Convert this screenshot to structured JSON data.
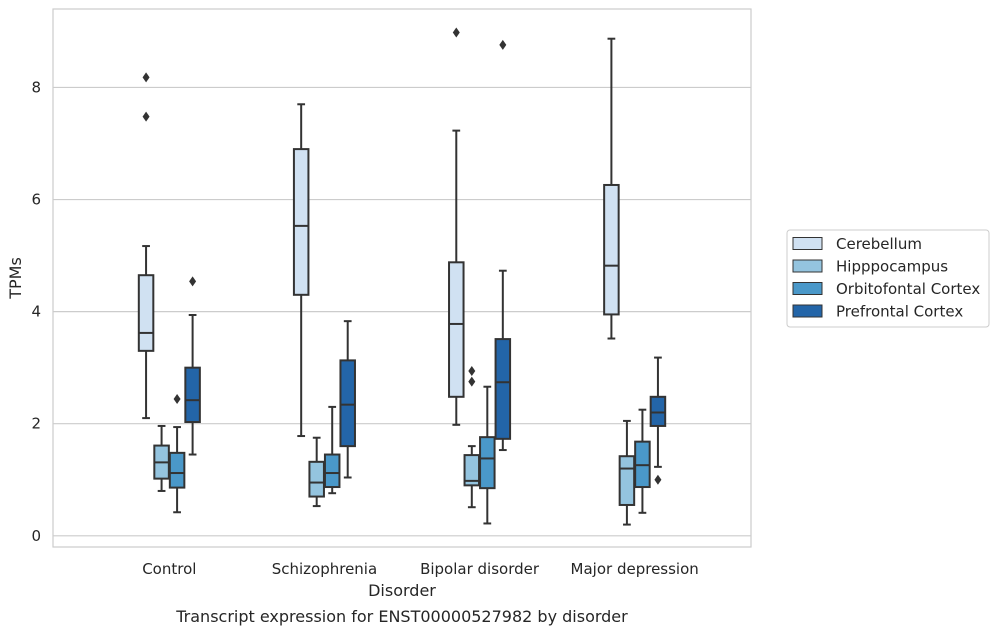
{
  "chart_data": {
    "type": "box",
    "caption": "Transcript expression for ENST00000527982 by disorder",
    "xlabel": "Disorder",
    "ylabel": "TPMs",
    "ylim": [
      -0.2,
      9.4
    ],
    "yticks": [
      0,
      2,
      4,
      6,
      8
    ],
    "grid": "horizontal",
    "legend_position": "right",
    "categories": [
      "Control",
      "Schizophrenia",
      "Bipolar disorder",
      "Major depression"
    ],
    "series": [
      {
        "name": "Cerebellum",
        "color": "#d0e1f2",
        "boxes": [
          {
            "whisker_low": 2.1,
            "q1": 3.3,
            "median": 3.62,
            "q3": 4.65,
            "whisker_high": 5.17,
            "outliers": [
              7.48,
              8.18
            ]
          },
          {
            "whisker_low": 1.78,
            "q1": 4.3,
            "median": 5.53,
            "q3": 6.9,
            "whisker_high": 7.7,
            "outliers": []
          },
          {
            "whisker_low": 1.98,
            "q1": 2.48,
            "median": 3.78,
            "q3": 4.88,
            "whisker_high": 7.23,
            "outliers": [
              8.98
            ]
          },
          {
            "whisker_low": 3.52,
            "q1": 3.95,
            "median": 4.82,
            "q3": 6.26,
            "whisker_high": 8.87,
            "outliers": []
          }
        ]
      },
      {
        "name": "Hipppocampus",
        "color": "#94c4df",
        "boxes": [
          {
            "whisker_low": 0.8,
            "q1": 1.02,
            "median": 1.31,
            "q3": 1.61,
            "whisker_high": 1.96,
            "outliers": []
          },
          {
            "whisker_low": 0.53,
            "q1": 0.7,
            "median": 0.95,
            "q3": 1.32,
            "whisker_high": 1.75,
            "outliers": []
          },
          {
            "whisker_low": 0.51,
            "q1": 0.9,
            "median": 0.98,
            "q3": 1.44,
            "whisker_high": 1.6,
            "outliers": [
              2.75,
              2.94
            ]
          },
          {
            "whisker_low": 0.2,
            "q1": 0.55,
            "median": 1.2,
            "q3": 1.42,
            "whisker_high": 2.05,
            "outliers": []
          }
        ]
      },
      {
        "name": "Orbitofontal Cortex",
        "color": "#4a98c9",
        "boxes": [
          {
            "whisker_low": 0.42,
            "q1": 0.86,
            "median": 1.12,
            "q3": 1.48,
            "whisker_high": 1.94,
            "outliers": [
              2.44
            ]
          },
          {
            "whisker_low": 0.76,
            "q1": 0.87,
            "median": 1.12,
            "q3": 1.45,
            "whisker_high": 2.3,
            "outliers": []
          },
          {
            "whisker_low": 0.22,
            "q1": 0.85,
            "median": 1.38,
            "q3": 1.76,
            "whisker_high": 2.66,
            "outliers": []
          },
          {
            "whisker_low": 0.41,
            "q1": 0.87,
            "median": 1.26,
            "q3": 1.68,
            "whisker_high": 2.25,
            "outliers": []
          }
        ]
      },
      {
        "name": "Prefrontal Cortex",
        "color": "#2365a8",
        "boxes": [
          {
            "whisker_low": 1.45,
            "q1": 2.03,
            "median": 2.42,
            "q3": 3.0,
            "whisker_high": 3.94,
            "outliers": [
              4.54
            ]
          },
          {
            "whisker_low": 1.04,
            "q1": 1.6,
            "median": 2.34,
            "q3": 3.13,
            "whisker_high": 3.83,
            "outliers": []
          },
          {
            "whisker_low": 1.53,
            "q1": 1.73,
            "median": 2.74,
            "q3": 3.51,
            "whisker_high": 4.73,
            "outliers": [
              8.76
            ]
          },
          {
            "whisker_low": 1.23,
            "q1": 1.96,
            "median": 2.2,
            "q3": 2.48,
            "whisker_high": 3.18,
            "outliers": [
              1.0
            ]
          }
        ]
      }
    ]
  }
}
